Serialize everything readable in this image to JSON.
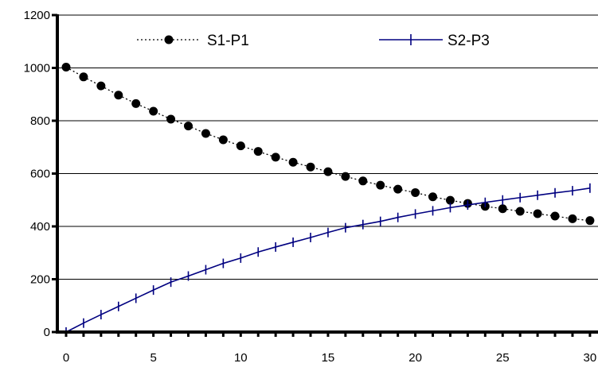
{
  "chart_data": {
    "type": "line",
    "title": "",
    "xlabel": "",
    "ylabel": "",
    "xlim": [
      0,
      30
    ],
    "ylim": [
      0,
      1200
    ],
    "x_ticks": [
      0,
      5,
      10,
      15,
      20,
      25,
      30
    ],
    "y_ticks": [
      0,
      200,
      400,
      600,
      800,
      1000,
      1200
    ],
    "grid": "horizontal",
    "legend_position": "top",
    "x": [
      0,
      1,
      2,
      3,
      4,
      5,
      6,
      7,
      8,
      9,
      10,
      11,
      12,
      13,
      14,
      15,
      16,
      17,
      18,
      19,
      20,
      21,
      22,
      23,
      24,
      25,
      26,
      27,
      28,
      29,
      30
    ],
    "series": [
      {
        "name": "S1-P1",
        "style": "dotted-line-circle-markers",
        "color": "#000000",
        "values": [
          1003,
          966,
          932,
          897,
          865,
          836,
          806,
          780,
          752,
          728,
          705,
          684,
          662,
          643,
          625,
          607,
          589,
          572,
          556,
          541,
          528,
          512,
          499,
          487,
          476,
          467,
          457,
          448,
          439,
          429,
          422
        ]
      },
      {
        "name": "S2-P3",
        "style": "solid-line-cross-markers",
        "color": "#000080",
        "values": [
          0,
          34,
          66,
          97,
          128,
          159,
          189,
          212,
          236,
          260,
          280,
          303,
          322,
          340,
          358,
          377,
          395,
          407,
          419,
          434,
          447,
          459,
          471,
          481,
          491,
          500,
          509,
          518,
          527,
          535,
          545
        ]
      }
    ]
  }
}
